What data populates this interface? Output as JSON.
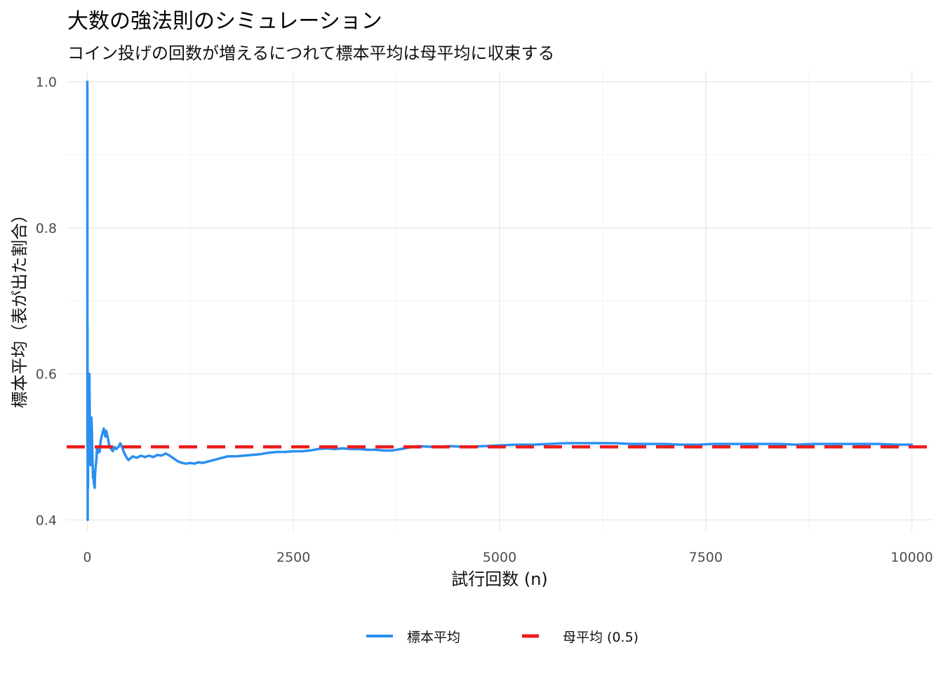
{
  "chart_data": {
    "type": "line",
    "title": "大数の強法則のシミュレーション",
    "subtitle": "コイン投げの回数が増えるにつれて標本平均は母平均に収束する",
    "xlabel": "試行回数 (n)",
    "ylabel": "標本平均（表が出た割合）",
    "xlim": [
      -250,
      10250
    ],
    "ylim": [
      0.385,
      1.015
    ],
    "x_ticks": [
      0,
      2500,
      5000,
      7500,
      10000
    ],
    "x_tick_labels": [
      "0",
      "2500",
      "5000",
      "7500",
      "10000"
    ],
    "y_ticks": [
      0.4,
      0.6,
      0.8,
      1.0
    ],
    "y_tick_labels": [
      "0.4",
      "0.6",
      "0.8",
      "1.0"
    ],
    "grid": true,
    "legend_position": "bottom",
    "series": [
      {
        "name": "標本平均",
        "color": "#2b8ff0",
        "style": "solid",
        "points": [
          [
            1,
            1.0
          ],
          [
            2,
            0.5
          ],
          [
            3,
            0.667
          ],
          [
            4,
            0.5
          ],
          [
            5,
            0.4
          ],
          [
            6,
            0.5
          ],
          [
            7,
            0.571
          ],
          [
            8,
            0.5
          ],
          [
            9,
            0.444
          ],
          [
            10,
            0.5
          ],
          [
            12,
            0.583
          ],
          [
            14,
            0.5
          ],
          [
            16,
            0.5625
          ],
          [
            18,
            0.5
          ],
          [
            20,
            0.55
          ],
          [
            22,
            0.59
          ],
          [
            25,
            0.6
          ],
          [
            28,
            0.571
          ],
          [
            32,
            0.53
          ],
          [
            36,
            0.5
          ],
          [
            40,
            0.475
          ],
          [
            45,
            0.511
          ],
          [
            50,
            0.54
          ],
          [
            55,
            0.527
          ],
          [
            60,
            0.5
          ],
          [
            65,
            0.477
          ],
          [
            70,
            0.457
          ],
          [
            75,
            0.467
          ],
          [
            80,
            0.45
          ],
          [
            85,
            0.447
          ],
          [
            90,
            0.444
          ],
          [
            95,
            0.463
          ],
          [
            100,
            0.47
          ],
          [
            110,
            0.482
          ],
          [
            120,
            0.5
          ],
          [
            130,
            0.492
          ],
          [
            140,
            0.5
          ],
          [
            150,
            0.493
          ],
          [
            160,
            0.506
          ],
          [
            170,
            0.512
          ],
          [
            180,
            0.517
          ],
          [
            190,
            0.521
          ],
          [
            200,
            0.525
          ],
          [
            210,
            0.519
          ],
          [
            220,
            0.514
          ],
          [
            230,
            0.522
          ],
          [
            240,
            0.517
          ],
          [
            250,
            0.512
          ],
          [
            270,
            0.5
          ],
          [
            290,
            0.497
          ],
          [
            310,
            0.494
          ],
          [
            330,
            0.5
          ],
          [
            350,
            0.497
          ],
          [
            380,
            0.5
          ],
          [
            400,
            0.505
          ],
          [
            420,
            0.5
          ],
          [
            450,
            0.491
          ],
          [
            480,
            0.485
          ],
          [
            500,
            0.482
          ],
          [
            550,
            0.487
          ],
          [
            600,
            0.485
          ],
          [
            650,
            0.488
          ],
          [
            700,
            0.486
          ],
          [
            750,
            0.488
          ],
          [
            800,
            0.486
          ],
          [
            850,
            0.489
          ],
          [
            900,
            0.488
          ],
          [
            950,
            0.491
          ],
          [
            1000,
            0.488
          ],
          [
            1050,
            0.484
          ],
          [
            1100,
            0.48
          ],
          [
            1150,
            0.478
          ],
          [
            1200,
            0.477
          ],
          [
            1250,
            0.478
          ],
          [
            1300,
            0.477
          ],
          [
            1350,
            0.479
          ],
          [
            1400,
            0.478
          ],
          [
            1500,
            0.481
          ],
          [
            1600,
            0.484
          ],
          [
            1700,
            0.487
          ],
          [
            1800,
            0.487
          ],
          [
            1900,
            0.488
          ],
          [
            2000,
            0.489
          ],
          [
            2100,
            0.49
          ],
          [
            2200,
            0.492
          ],
          [
            2300,
            0.493
          ],
          [
            2400,
            0.493
          ],
          [
            2500,
            0.494
          ],
          [
            2600,
            0.494
          ],
          [
            2700,
            0.495
          ],
          [
            2800,
            0.497
          ],
          [
            2900,
            0.498
          ],
          [
            3000,
            0.497
          ],
          [
            3100,
            0.498
          ],
          [
            3200,
            0.497
          ],
          [
            3300,
            0.497
          ],
          [
            3400,
            0.496
          ],
          [
            3500,
            0.496
          ],
          [
            3600,
            0.495
          ],
          [
            3700,
            0.495
          ],
          [
            3800,
            0.497
          ],
          [
            3900,
            0.499
          ],
          [
            4000,
            0.501
          ],
          [
            4200,
            0.5
          ],
          [
            4400,
            0.501
          ],
          [
            4600,
            0.5
          ],
          [
            4800,
            0.501
          ],
          [
            5000,
            0.502
          ],
          [
            5200,
            0.503
          ],
          [
            5400,
            0.503
          ],
          [
            5600,
            0.504
          ],
          [
            5800,
            0.505
          ],
          [
            6000,
            0.505
          ],
          [
            6200,
            0.505
          ],
          [
            6400,
            0.505
          ],
          [
            6600,
            0.504
          ],
          [
            6800,
            0.504
          ],
          [
            7000,
            0.504
          ],
          [
            7200,
            0.503
          ],
          [
            7400,
            0.503
          ],
          [
            7600,
            0.504
          ],
          [
            7800,
            0.504
          ],
          [
            8000,
            0.504
          ],
          [
            8200,
            0.504
          ],
          [
            8400,
            0.504
          ],
          [
            8600,
            0.503
          ],
          [
            8800,
            0.504
          ],
          [
            9000,
            0.504
          ],
          [
            9200,
            0.504
          ],
          [
            9400,
            0.504
          ],
          [
            9600,
            0.504
          ],
          [
            9800,
            0.503
          ],
          [
            10000,
            0.503
          ]
        ]
      },
      {
        "name": "母平均 (0.5)",
        "color": "#ee1c1c",
        "style": "dashed",
        "value": 0.5
      }
    ]
  }
}
